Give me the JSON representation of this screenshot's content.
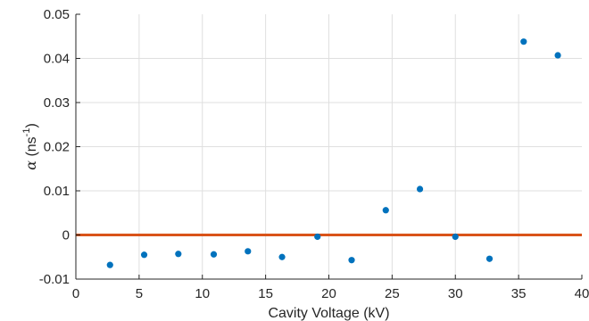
{
  "chart_data": {
    "type": "scatter",
    "xlabel": "Cavity Voltage (kV)",
    "ylabel": {
      "symbol": "α",
      "unit_open": " (ns",
      "unit_exp": "-1",
      "unit_close": ")"
    },
    "xlim": [
      0,
      40
    ],
    "ylim": [
      -0.01,
      0.05
    ],
    "xticks": [
      0,
      5,
      10,
      15,
      20,
      25,
      30,
      35,
      40
    ],
    "xtick_labels": [
      "0",
      "5",
      "10",
      "15",
      "20",
      "25",
      "30",
      "35",
      "40"
    ],
    "yticks": [
      -0.01,
      0,
      0.01,
      0.02,
      0.03,
      0.04,
      0.05
    ],
    "ytick_labels": [
      "-0.01",
      "0",
      "0.01",
      "0.02",
      "0.03",
      "0.04",
      "0.05"
    ],
    "grid": true,
    "series": [
      {
        "kind": "scatter",
        "color": "#0072BD",
        "x": [
          2.7,
          5.4,
          8.1,
          10.9,
          13.6,
          16.3,
          19.1,
          21.8,
          24.5,
          27.2,
          30.0,
          32.7,
          35.4,
          38.1
        ],
        "y": [
          -0.0068,
          -0.0045,
          -0.0043,
          -0.0044,
          -0.0037,
          -0.005,
          -0.0004,
          -0.0057,
          0.0056,
          0.0104,
          -0.0004,
          -0.0054,
          0.0438,
          0.0407
        ]
      },
      {
        "kind": "hline",
        "color": "#D95319",
        "y": 0
      }
    ]
  }
}
